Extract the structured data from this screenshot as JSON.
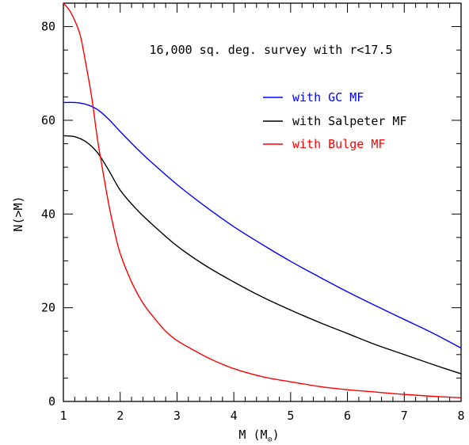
{
  "chart_data": {
    "type": "line",
    "title": "",
    "annotation": "16,000 sq. deg. survey with r<17.5",
    "xlabel": "M (M",
    "xlabel_sub": "⊙",
    "xlabel_close": ")",
    "ylabel": "N(>M)",
    "xlim": [
      1,
      8
    ],
    "ylim": [
      0,
      85
    ],
    "xticks": [
      1,
      2,
      3,
      4,
      5,
      6,
      7,
      8
    ],
    "yticks": [
      0,
      20,
      40,
      60,
      80
    ],
    "grid": false,
    "legend_position": "top-right",
    "series": [
      {
        "name": "with GC MF",
        "color": "#0000ff",
        "x": [
          1.0,
          1.2,
          1.4,
          1.6,
          1.8,
          2.0,
          2.25,
          2.5,
          3.0,
          3.5,
          4.0,
          4.5,
          5.0,
          5.5,
          6.0,
          6.5,
          7.0,
          7.5,
          8.0
        ],
        "y": [
          63.8,
          63.8,
          63.4,
          62.3,
          60.2,
          57.6,
          54.5,
          51.6,
          46.3,
          41.6,
          37.3,
          33.5,
          29.9,
          26.6,
          23.4,
          20.4,
          17.5,
          14.6,
          11.4
        ]
      },
      {
        "name": "with Salpeter MF",
        "color": "#000000",
        "x": [
          1.0,
          1.2,
          1.4,
          1.6,
          1.8,
          2.0,
          2.25,
          2.5,
          3.0,
          3.5,
          4.0,
          4.5,
          5.0,
          5.5,
          6.0,
          6.5,
          7.0,
          7.5,
          8.0
        ],
        "y": [
          56.7,
          56.5,
          55.4,
          53.1,
          49.3,
          45.1,
          41.5,
          38.5,
          33.2,
          29.0,
          25.5,
          22.3,
          19.5,
          16.9,
          14.5,
          12.1,
          10.0,
          7.9,
          5.9
        ]
      },
      {
        "name": "with Bulge MF",
        "color": "#ff0000",
        "x": [
          1.0,
          1.1,
          1.2,
          1.3,
          1.4,
          1.5,
          1.6,
          1.7,
          1.8,
          1.9,
          2.0,
          2.2,
          2.4,
          2.6,
          2.8,
          3.0,
          3.3,
          3.6,
          4.0,
          4.5,
          5.0,
          5.5,
          6.0,
          6.5,
          7.0,
          7.5,
          8.0
        ],
        "y": [
          85.0,
          83.6,
          81.3,
          78.0,
          71.8,
          64.8,
          56.0,
          48.8,
          42.0,
          36.3,
          31.6,
          25.5,
          21.0,
          17.8,
          15.0,
          13.0,
          10.9,
          9.0,
          7.0,
          5.3,
          4.2,
          3.2,
          2.5,
          2.0,
          1.5,
          1.1,
          0.8
        ]
      }
    ]
  }
}
